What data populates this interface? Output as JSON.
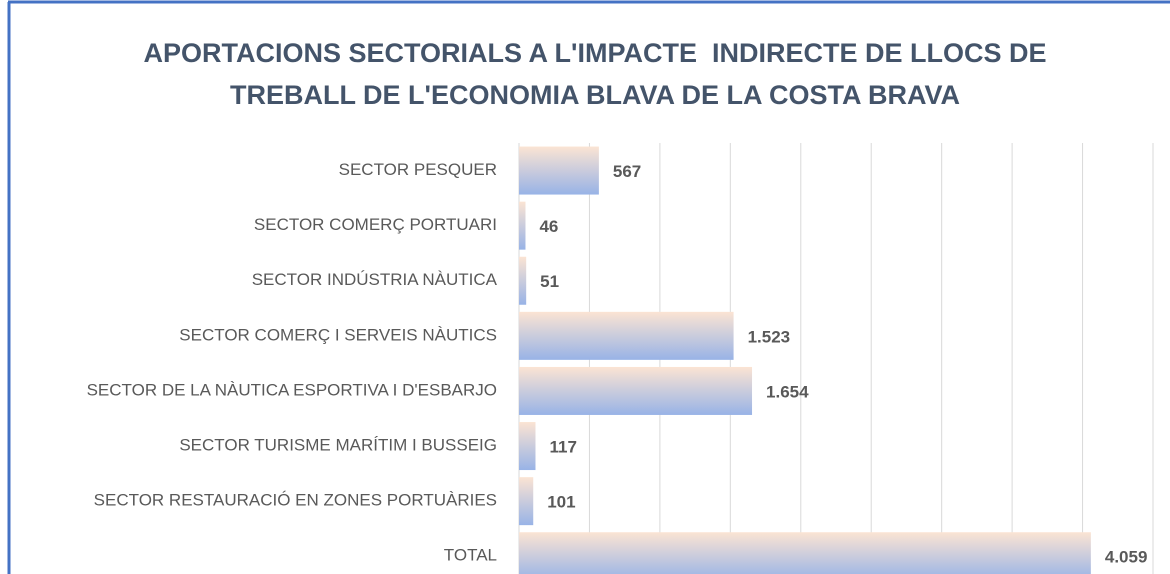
{
  "chart_data": {
    "type": "bar",
    "orientation": "horizontal",
    "title": [
      "APORTACIONS SECTORIALS A L'IMPACTE  INDIRECTE DE LLOCS DE",
      "TREBALL DE L'ECONOMIA BLAVA DE LA COSTA BRAVA"
    ],
    "categories": [
      "SECTOR PESQUER",
      "SECTOR COMERÇ PORTUARI",
      "SECTOR INDÚSTRIA NÀUTICA",
      "SECTOR COMERÇ I SERVEIS NÀUTICS",
      "SECTOR DE LA NÀUTICA ESPORTIVA I D'ESBARJO",
      "SECTOR TURISME MARÍTIM I BUSSEIG",
      "SECTOR RESTAURACIÓ EN ZONES PORTUÀRIES",
      "TOTAL"
    ],
    "values": [
      567,
      46,
      51,
      1523,
      1654,
      117,
      101,
      4059
    ],
    "value_labels": [
      "567",
      "46",
      "51",
      "1.523",
      "1.654",
      "117",
      "101",
      "4.059"
    ],
    "color": [
      "#fbe4d3",
      "#98b3e6"
    ],
    "xlim": [
      0,
      4500
    ],
    "xticks": [
      0,
      500,
      1000,
      1500,
      2000,
      2500,
      3000,
      3500,
      4000,
      4500
    ],
    "grid": true
  }
}
